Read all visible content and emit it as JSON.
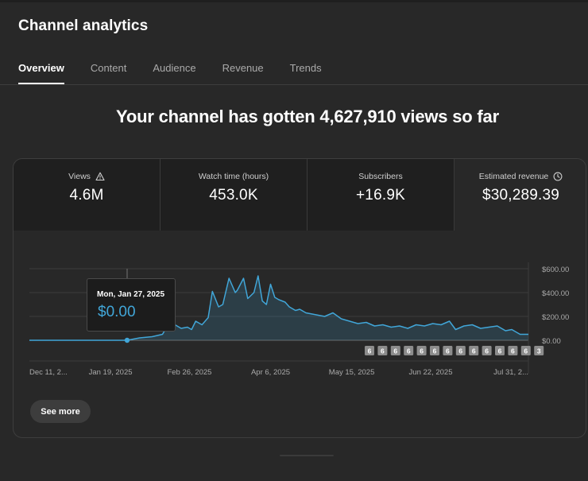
{
  "page": {
    "title": "Channel analytics"
  },
  "tabs": [
    {
      "label": "Overview",
      "active": true
    },
    {
      "label": "Content",
      "active": false
    },
    {
      "label": "Audience",
      "active": false
    },
    {
      "label": "Revenue",
      "active": false
    },
    {
      "label": "Trends",
      "active": false
    }
  ],
  "headline": "Your channel has gotten 4,627,910 views so far",
  "metrics": [
    {
      "label": "Views",
      "value": "4.6M",
      "icon": "warning-icon"
    },
    {
      "label": "Watch time (hours)",
      "value": "453.0K"
    },
    {
      "label": "Subscribers",
      "value": "+16.9K"
    },
    {
      "label": "Estimated revenue",
      "value": "$30,289.39",
      "icon": "clock-icon",
      "selected": true
    }
  ],
  "tooltip": {
    "date": "Mon, Jan 27, 2025",
    "value": "$0.00"
  },
  "see_more_label": "See more",
  "event_markers": [
    "6",
    "6",
    "6",
    "6",
    "6",
    "6",
    "6",
    "6",
    "6",
    "6",
    "6",
    "6",
    "6",
    "3"
  ],
  "colors": {
    "line": "#41a6d8",
    "background": "#282828",
    "metric_tile": "#1f1f1f"
  },
  "chart_data": {
    "type": "area",
    "y_unit": "USD",
    "yticks": [
      "$600.00",
      "$400.00",
      "$200.00",
      "$0.00"
    ],
    "ylim": [
      0,
      600
    ],
    "xticks": [
      "Dec 11, 2...",
      "Jan 19, 2025",
      "Feb 26, 2025",
      "Apr 6, 2025",
      "May 15, 2025",
      "Jun 22, 2025",
      "Jul 31, 2..."
    ],
    "grid": true,
    "x": [
      "2024-12-11",
      "2024-12-25",
      "2025-01-10",
      "2025-01-19",
      "2025-01-27",
      "2025-02-02",
      "2025-02-08",
      "2025-02-13",
      "2025-02-15",
      "2025-02-16",
      "2025-02-19",
      "2025-02-22",
      "2025-02-25",
      "2025-02-27",
      "2025-03-01",
      "2025-03-04",
      "2025-03-07",
      "2025-03-09",
      "2025-03-12",
      "2025-03-14",
      "2025-03-17",
      "2025-03-20",
      "2025-03-21",
      "2025-03-24",
      "2025-03-26",
      "2025-03-29",
      "2025-03-31",
      "2025-04-02",
      "2025-04-04",
      "2025-04-06",
      "2025-04-08",
      "2025-04-10",
      "2025-04-13",
      "2025-04-15",
      "2025-04-18",
      "2025-04-20",
      "2025-04-23",
      "2025-04-26",
      "2025-04-29",
      "2025-05-02",
      "2025-05-06",
      "2025-05-10",
      "2025-05-14",
      "2025-05-18",
      "2025-05-22",
      "2025-05-26",
      "2025-05-30",
      "2025-06-03",
      "2025-06-07",
      "2025-06-11",
      "2025-06-15",
      "2025-06-19",
      "2025-06-23",
      "2025-06-27",
      "2025-07-01",
      "2025-07-04",
      "2025-07-08",
      "2025-07-12",
      "2025-07-16",
      "2025-07-20",
      "2025-07-24",
      "2025-07-28",
      "2025-07-31",
      "2025-08-04",
      "2025-08-08"
    ],
    "series": [
      {
        "values": [
          0,
          0,
          0,
          0,
          0,
          20,
          30,
          50,
          110,
          270,
          130,
          100,
          110,
          90,
          160,
          130,
          190,
          410,
          280,
          300,
          520,
          400,
          420,
          520,
          350,
          400,
          540,
          330,
          300,
          470,
          360,
          340,
          320,
          280,
          250,
          260,
          230,
          220,
          210,
          200,
          230,
          180,
          160,
          140,
          150,
          120,
          130,
          110,
          120,
          100,
          130,
          120,
          140,
          130,
          160,
          90,
          120,
          130,
          100,
          110,
          120,
          80,
          90,
          50,
          50
        ]
      }
    ]
  }
}
